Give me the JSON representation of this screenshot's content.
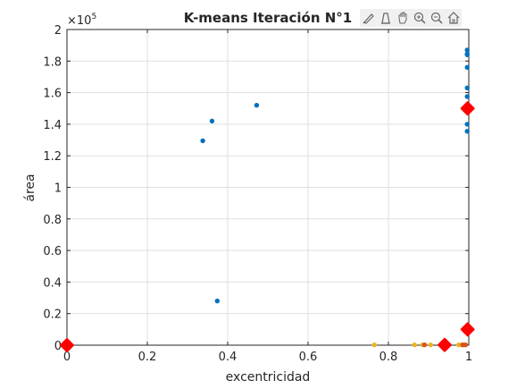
{
  "toolbar": {
    "icons": [
      "brush-icon",
      "datatip-icon",
      "pan-hand-icon",
      "zoom-in-icon",
      "zoom-out-icon",
      "home-icon"
    ]
  },
  "chart_data": {
    "type": "scatter",
    "title": "K-means Iteración N°1",
    "xlabel": "excentricidad",
    "ylabel": "área",
    "y_exponent_label": "×10",
    "y_exponent_power": "5",
    "xlim": [
      0,
      1
    ],
    "ylim": [
      0,
      2
    ],
    "xticks": [
      0,
      0.2,
      0.4,
      0.6,
      0.8,
      1
    ],
    "xtick_labels": [
      "0",
      "0.2",
      "0.4",
      "0.6",
      "0.8",
      "1"
    ],
    "yticks": [
      0,
      0.2,
      0.4,
      0.6,
      0.8,
      1,
      1.2,
      1.4,
      1.6,
      1.8,
      2
    ],
    "ytick_labels": [
      "0",
      "0.2",
      "0.4",
      "0.6",
      "0.8",
      "1",
      "1.2",
      "1.4",
      "1.6",
      "1.8",
      "2"
    ],
    "grid": true,
    "series": [
      {
        "color": "#0072BD",
        "points": [
          [
            0.338,
            1.295
          ],
          [
            0.361,
            1.42
          ],
          [
            0.472,
            1.52
          ],
          [
            0.374,
            0.28
          ],
          [
            0.996,
            1.87
          ],
          [
            0.996,
            1.845
          ],
          [
            0.996,
            1.84
          ],
          [
            0.996,
            1.76
          ],
          [
            0.996,
            1.63
          ],
          [
            0.996,
            1.575
          ],
          [
            0.996,
            1.52
          ],
          [
            0.996,
            1.4
          ],
          [
            0.996,
            1.355
          ],
          [
            0.996,
            1.5
          ]
        ]
      },
      {
        "color": "#EDB120",
        "points": [
          [
            0.765,
            0.002
          ],
          [
            0.865,
            0.002
          ],
          [
            0.885,
            0.002
          ],
          [
            0.905,
            0.002
          ],
          [
            0.975,
            0.002
          ],
          [
            0.982,
            0.002
          ],
          [
            0.988,
            0.002
          ]
        ]
      },
      {
        "color": "#D95319",
        "points": [
          [
            0.89,
            0.002
          ],
          [
            0.935,
            0.002
          ],
          [
            0.985,
            0.002
          ],
          [
            0.992,
            0.002
          ]
        ]
      },
      {
        "color": "#A2142F",
        "points": [
          [
            0.001,
            0.002
          ],
          [
            0.002,
            0.001
          ]
        ]
      }
    ],
    "centroids": {
      "color": "#FF0000",
      "points": [
        [
          0.0,
          0.0
        ],
        [
          0.94,
          0.002
        ],
        [
          0.997,
          0.1
        ],
        [
          0.997,
          1.5
        ]
      ]
    }
  }
}
